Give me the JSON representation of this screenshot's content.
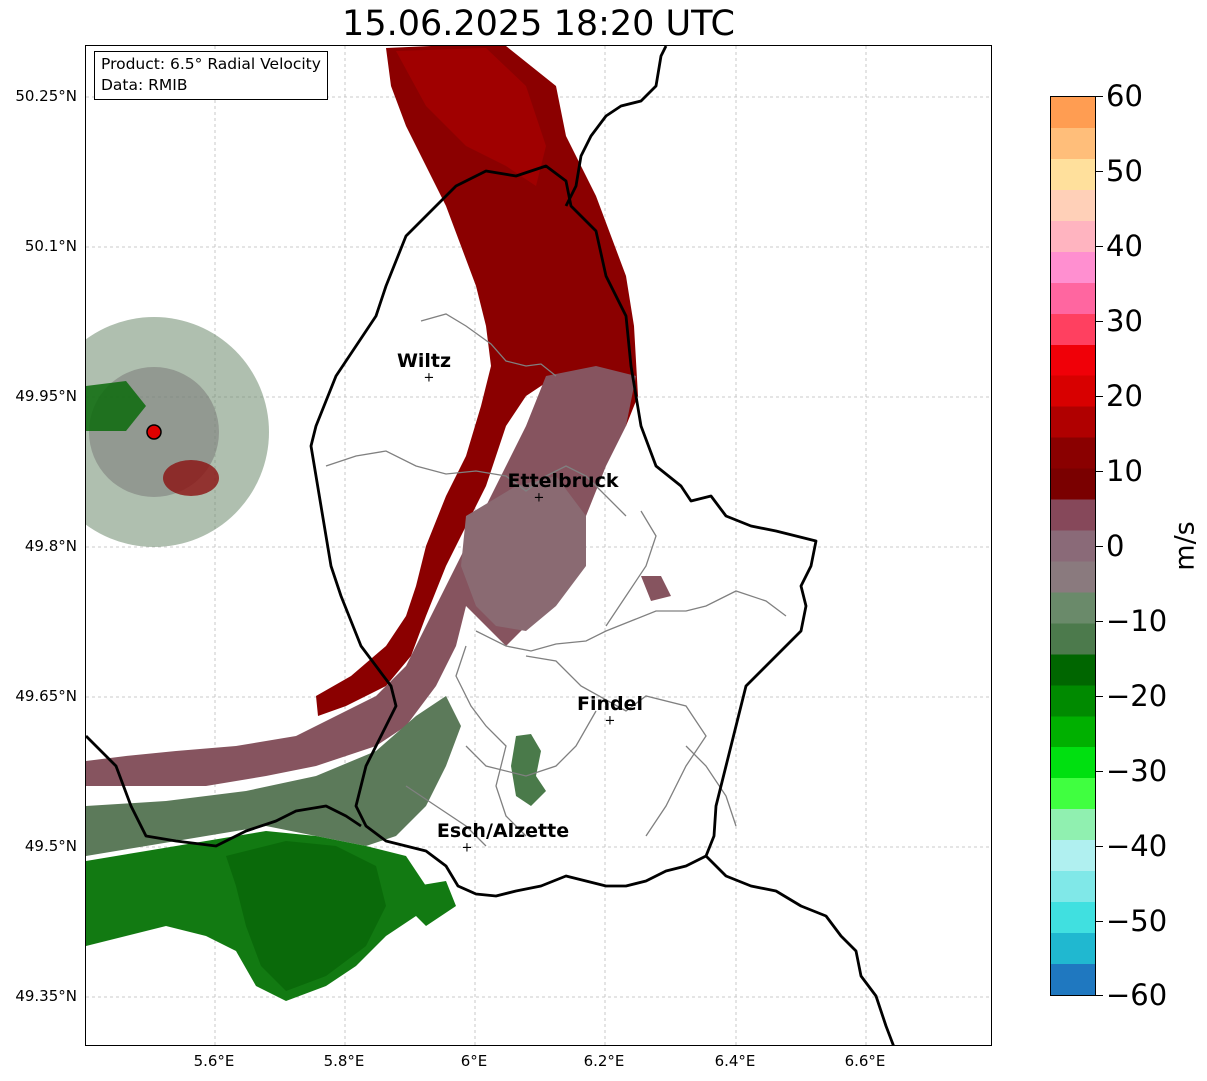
{
  "title": "15.06.2025 18:20 UTC",
  "info_box": {
    "product": "Product: 6.5° Radial Velocity",
    "data": "Data: RMIB"
  },
  "axes": {
    "lat_labels": [
      "50.25°N",
      "50.1°N",
      "49.95°N",
      "49.8°N",
      "49.65°N",
      "49.5°N",
      "49.35°N"
    ],
    "lon_labels": [
      "5.6°E",
      "5.8°E",
      "6°E",
      "6.2°E",
      "6.4°E",
      "6.6°E"
    ],
    "grid": "dashed"
  },
  "cities": [
    {
      "name": "Wiltz"
    },
    {
      "name": "Ettelbruck"
    },
    {
      "name": "Findel"
    },
    {
      "name": "Esch/Alzette"
    }
  ],
  "colorbar": {
    "unit": "m/s",
    "ticks": [
      "60",
      "50",
      "40",
      "30",
      "20",
      "10",
      "0",
      "−10",
      "−20",
      "−30",
      "−40",
      "−50",
      "−60"
    ],
    "range": [
      -60,
      60
    ],
    "colors_top_to_bottom": [
      "#ff9d52",
      "#ffbe7a",
      "#ffe09c",
      "#ffd0b8",
      "#ffb4c0",
      "#ff8fd0",
      "#ff66a0",
      "#ff4060",
      "#f00008",
      "#d80000",
      "#b00000",
      "#8a0000",
      "#7a0000",
      "#86485a",
      "#8a6a78",
      "#8a7a7e",
      "#6a8a6a",
      "#4c7a4c",
      "#006600",
      "#008a00",
      "#00b000",
      "#00e010",
      "#40ff40",
      "#90f0b0",
      "#b0f0f0",
      "#80e8e8",
      "#40e0e0",
      "#20b8d0",
      "#1f78c0"
    ]
  },
  "radar_site": {
    "marker_color": "#e00000"
  }
}
